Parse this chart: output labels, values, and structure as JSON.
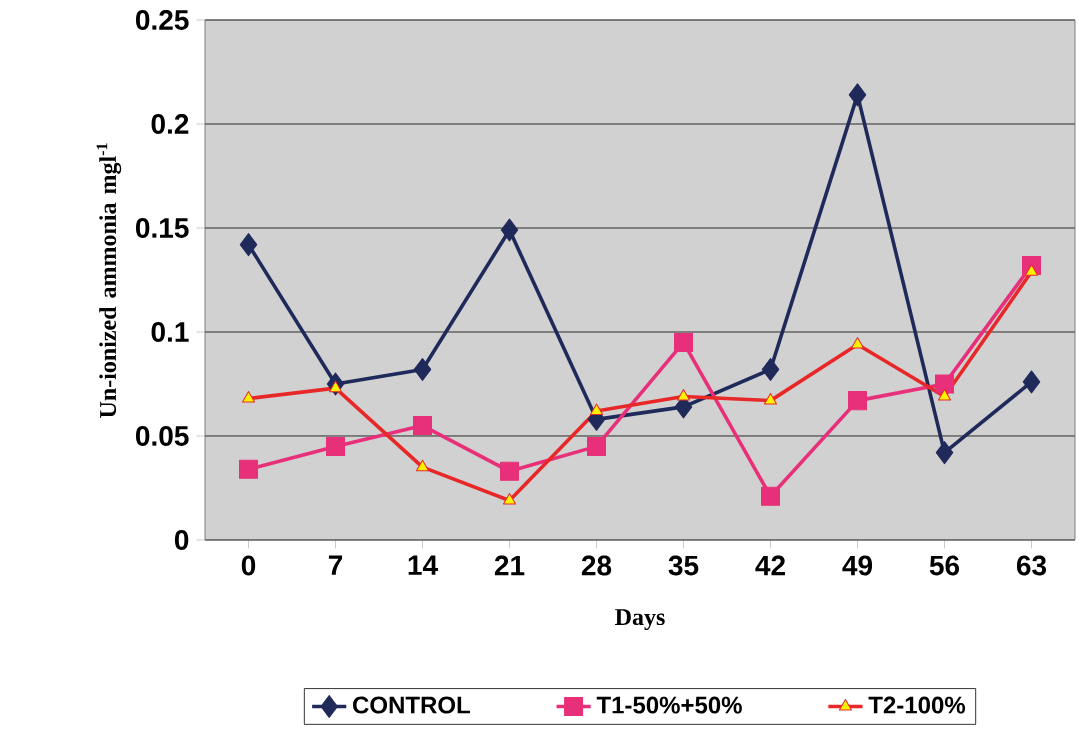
{
  "chart_data": {
    "type": "line",
    "xlabel": "Days",
    "ylabel": "Un-ionized ammonia mgl$^{-1}$",
    "categories": [
      "0",
      "7",
      "14",
      "21",
      "28",
      "35",
      "42",
      "49",
      "56",
      "63"
    ],
    "series": [
      {
        "name": "CONTROL",
        "color": "#1f2a5a",
        "marker": "diamond",
        "values": [
          0.142,
          0.075,
          0.082,
          0.149,
          0.058,
          0.064,
          0.082,
          0.214,
          0.042,
          0.076
        ]
      },
      {
        "name": "T1-50%+50%",
        "color": "#e8307a",
        "marker": "square",
        "values": [
          0.034,
          0.045,
          0.055,
          0.033,
          0.045,
          0.095,
          0.021,
          0.067,
          0.075,
          0.132
        ]
      },
      {
        "name": "T2-100%",
        "color": "#e82828",
        "marker": "triangle",
        "values": [
          0.068,
          0.073,
          0.035,
          0.019,
          0.062,
          0.069,
          0.067,
          0.094,
          0.069,
          0.129
        ]
      }
    ],
    "ylim": [
      0,
      0.25
    ],
    "yticks": [
      0,
      0.05,
      0.1,
      0.15,
      0.2,
      0.25
    ],
    "grid": "y",
    "legend": "bottom",
    "line_style": "solid"
  }
}
